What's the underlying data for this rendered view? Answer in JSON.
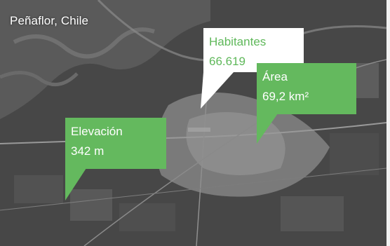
{
  "map": {
    "place_label": "Peñaflor, Chile",
    "callouts": {
      "habitantes": {
        "label": "Habitantes",
        "value": "66.619"
      },
      "area": {
        "label": "Área",
        "value": "69,2 km²"
      },
      "elevacion": {
        "label": "Elevación",
        "value": "342 m"
      }
    },
    "colors": {
      "callout_green": "#64b95e",
      "callout_white": "#ffffff",
      "white_box_text": "#5fb85a"
    }
  }
}
